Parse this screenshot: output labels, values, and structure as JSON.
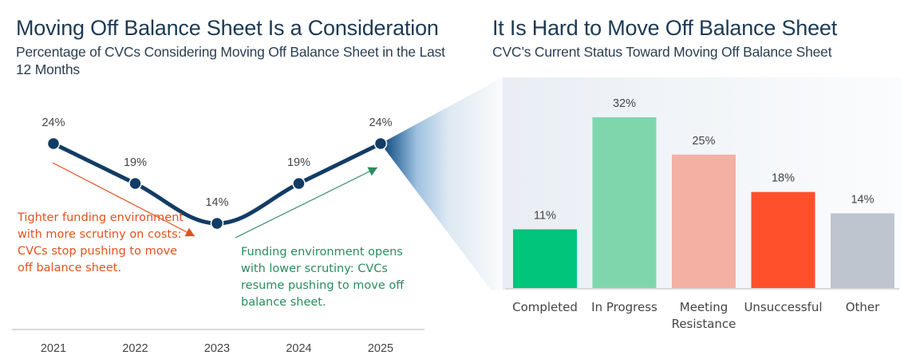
{
  "left": {
    "title": "Moving Off Balance Sheet Is a Consideration",
    "subtitle": "Percentage of CVCs Considering Moving Off Balance Sheet in the Last 12 Months",
    "annotation_decline": "Tighter funding environment with more scrutiny on costs: CVCs stop pushing to move off balance sheet.",
    "annotation_rise": "Funding environment opens with lower scrutiny: CVCs resume pushing to move off balance sheet."
  },
  "right": {
    "title": "It Is Hard to Move Off Balance Sheet",
    "subtitle": "CVC’s Current Status Toward Moving Off Balance Sheet"
  },
  "colors": {
    "line": "#123c64",
    "decline_annotation": "#e0521e",
    "rise_annotation": "#2a8c5e",
    "axis": "#d9d9d9",
    "label": "#444444"
  },
  "chart_data": [
    {
      "type": "line",
      "title": "Moving Off Balance Sheet Is a Consideration",
      "subtitle": "Percentage of CVCs Considering Moving Off Balance Sheet in the Last 12 Months",
      "x": [
        "2021",
        "2022",
        "2023",
        "2024",
        "2025"
      ],
      "values": [
        24,
        19,
        14,
        19,
        24
      ],
      "data_labels": [
        "24%",
        "19%",
        "14%",
        "19%",
        "24%"
      ],
      "ylim": [
        0,
        30
      ],
      "xlabel": "",
      "ylabel": "",
      "grid": false,
      "annotations": [
        {
          "text": "Tighter funding environment with more scrutiny on costs: CVCs stop pushing to move off balance sheet.",
          "trend": "down",
          "from": "2021",
          "to": "2023"
        },
        {
          "text": "Funding environment opens with lower scrutiny: CVCs resume pushing to move off balance sheet.",
          "trend": "up",
          "from": "2023",
          "to": "2025"
        }
      ]
    },
    {
      "type": "bar",
      "title": "It Is Hard to Move Off Balance Sheet",
      "subtitle": "CVC’s Current Status Toward Moving Off Balance Sheet",
      "categories": [
        "Completed",
        "In Progress",
        "Meeting Resistance",
        "Unsuccessful",
        "Other"
      ],
      "category_lines": [
        [
          "Completed"
        ],
        [
          "In Progress"
        ],
        [
          "Meeting",
          "Resistance"
        ],
        [
          "Unsuccessful"
        ],
        [
          "Other"
        ]
      ],
      "values": [
        11,
        32,
        25,
        18,
        14
      ],
      "data_labels": [
        "11%",
        "32%",
        "25%",
        "18%",
        "14%"
      ],
      "colors": [
        "#00c57a",
        "#7fd6ad",
        "#f4b0a3",
        "#ff4f2b",
        "#bec5ce"
      ],
      "ylim": [
        0,
        32
      ],
      "xlabel": "",
      "ylabel": "",
      "grid": false
    }
  ]
}
